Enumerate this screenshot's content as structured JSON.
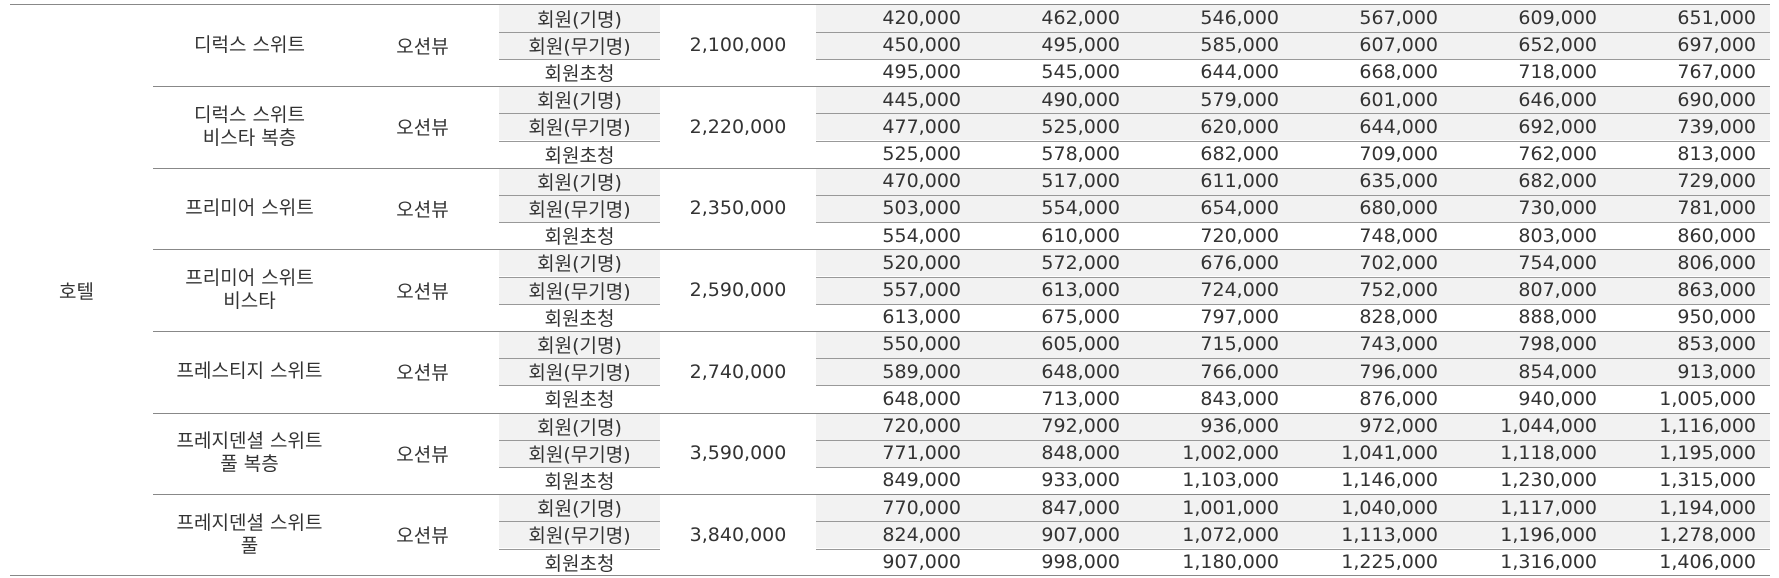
{
  "table": {
    "category": "호텔",
    "groups": [
      {
        "room": [
          "디럭스 스위트"
        ],
        "view": "오션뷰",
        "base": "2,100,000",
        "rows": [
          {
            "type": "회원(기명)",
            "prices": [
              "420,000",
              "462,000",
              "546,000",
              "567,000",
              "609,000",
              "651,000"
            ]
          },
          {
            "type": "회원(무기명)",
            "prices": [
              "450,000",
              "495,000",
              "585,000",
              "607,000",
              "652,000",
              "697,000"
            ]
          },
          {
            "type": "회원초청",
            "prices": [
              "495,000",
              "545,000",
              "644,000",
              "668,000",
              "718,000",
              "767,000"
            ]
          }
        ]
      },
      {
        "room": [
          "디럭스 스위트",
          "비스타 복층"
        ],
        "view": "오션뷰",
        "base": "2,220,000",
        "rows": [
          {
            "type": "회원(기명)",
            "prices": [
              "445,000",
              "490,000",
              "579,000",
              "601,000",
              "646,000",
              "690,000"
            ]
          },
          {
            "type": "회원(무기명)",
            "prices": [
              "477,000",
              "525,000",
              "620,000",
              "644,000",
              "692,000",
              "739,000"
            ]
          },
          {
            "type": "회원초청",
            "prices": [
              "525,000",
              "578,000",
              "682,000",
              "709,000",
              "762,000",
              "813,000"
            ]
          }
        ]
      },
      {
        "room": [
          "프리미어 스위트"
        ],
        "view": "오션뷰",
        "base": "2,350,000",
        "rows": [
          {
            "type": "회원(기명)",
            "prices": [
              "470,000",
              "517,000",
              "611,000",
              "635,000",
              "682,000",
              "729,000"
            ]
          },
          {
            "type": "회원(무기명)",
            "prices": [
              "503,000",
              "554,000",
              "654,000",
              "680,000",
              "730,000",
              "781,000"
            ]
          },
          {
            "type": "회원초청",
            "prices": [
              "554,000",
              "610,000",
              "720,000",
              "748,000",
              "803,000",
              "860,000"
            ]
          }
        ]
      },
      {
        "room": [
          "프리미어 스위트",
          "비스타"
        ],
        "view": "오션뷰",
        "base": "2,590,000",
        "rows": [
          {
            "type": "회원(기명)",
            "prices": [
              "520,000",
              "572,000",
              "676,000",
              "702,000",
              "754,000",
              "806,000"
            ]
          },
          {
            "type": "회원(무기명)",
            "prices": [
              "557,000",
              "613,000",
              "724,000",
              "752,000",
              "807,000",
              "863,000"
            ]
          },
          {
            "type": "회원초청",
            "prices": [
              "613,000",
              "675,000",
              "797,000",
              "828,000",
              "888,000",
              "950,000"
            ]
          }
        ]
      },
      {
        "room": [
          "프레스티지 스위트"
        ],
        "view": "오션뷰",
        "base": "2,740,000",
        "rows": [
          {
            "type": "회원(기명)",
            "prices": [
              "550,000",
              "605,000",
              "715,000",
              "743,000",
              "798,000",
              "853,000"
            ]
          },
          {
            "type": "회원(무기명)",
            "prices": [
              "589,000",
              "648,000",
              "766,000",
              "796,000",
              "854,000",
              "913,000"
            ]
          },
          {
            "type": "회원초청",
            "prices": [
              "648,000",
              "713,000",
              "843,000",
              "876,000",
              "940,000",
              "1,005,000"
            ]
          }
        ]
      },
      {
        "room": [
          "프레지덴셜 스위트",
          "풀 복층"
        ],
        "view": "오션뷰",
        "base": "3,590,000",
        "rows": [
          {
            "type": "회원(기명)",
            "prices": [
              "720,000",
              "792,000",
              "936,000",
              "972,000",
              "1,044,000",
              "1,116,000"
            ]
          },
          {
            "type": "회원(무기명)",
            "prices": [
              "771,000",
              "848,000",
              "1,002,000",
              "1,041,000",
              "1,118,000",
              "1,195,000"
            ]
          },
          {
            "type": "회원초청",
            "prices": [
              "849,000",
              "933,000",
              "1,103,000",
              "1,146,000",
              "1,230,000",
              "1,315,000"
            ]
          }
        ]
      },
      {
        "room": [
          "프레지덴셜 스위트",
          "풀"
        ],
        "view": "오션뷰",
        "base": "3,840,000",
        "rows": [
          {
            "type": "회원(기명)",
            "prices": [
              "770,000",
              "847,000",
              "1,001,000",
              "1,040,000",
              "1,117,000",
              "1,194,000"
            ]
          },
          {
            "type": "회원(무기명)",
            "prices": [
              "824,000",
              "907,000",
              "1,072,000",
              "1,113,000",
              "1,196,000",
              "1,278,000"
            ]
          },
          {
            "type": "회원초청",
            "prices": [
              "907,000",
              "998,000",
              "1,180,000",
              "1,225,000",
              "1,316,000",
              "1,406,000"
            ]
          }
        ]
      }
    ]
  }
}
